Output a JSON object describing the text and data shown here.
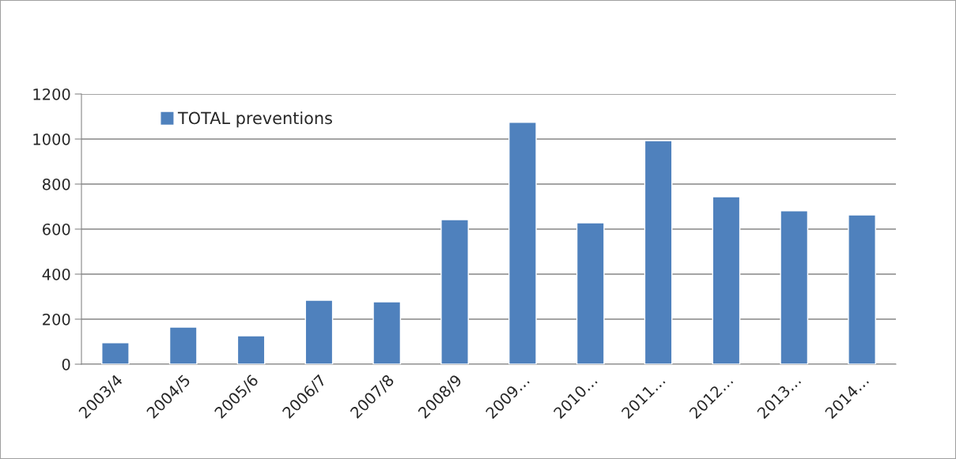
{
  "chart_data": {
    "type": "bar",
    "categories": [
      "2003/4",
      "2004/5",
      "2005/6",
      "2006/7",
      "2007/8",
      "2008/9",
      "2009…",
      "2010…",
      "2011…",
      "2012…",
      "2013…",
      "2014…"
    ],
    "series": [
      {
        "name": "TOTAL preventions",
        "color": "#4f81bd",
        "values": [
          95,
          165,
          126,
          284,
          277,
          642,
          1074,
          628,
          993,
          744,
          681,
          663
        ]
      }
    ],
    "ylim": [
      0,
      1200
    ],
    "yticks": [
      0,
      200,
      400,
      600,
      800,
      1000,
      1200
    ],
    "grid": "y",
    "legend": "top left"
  }
}
